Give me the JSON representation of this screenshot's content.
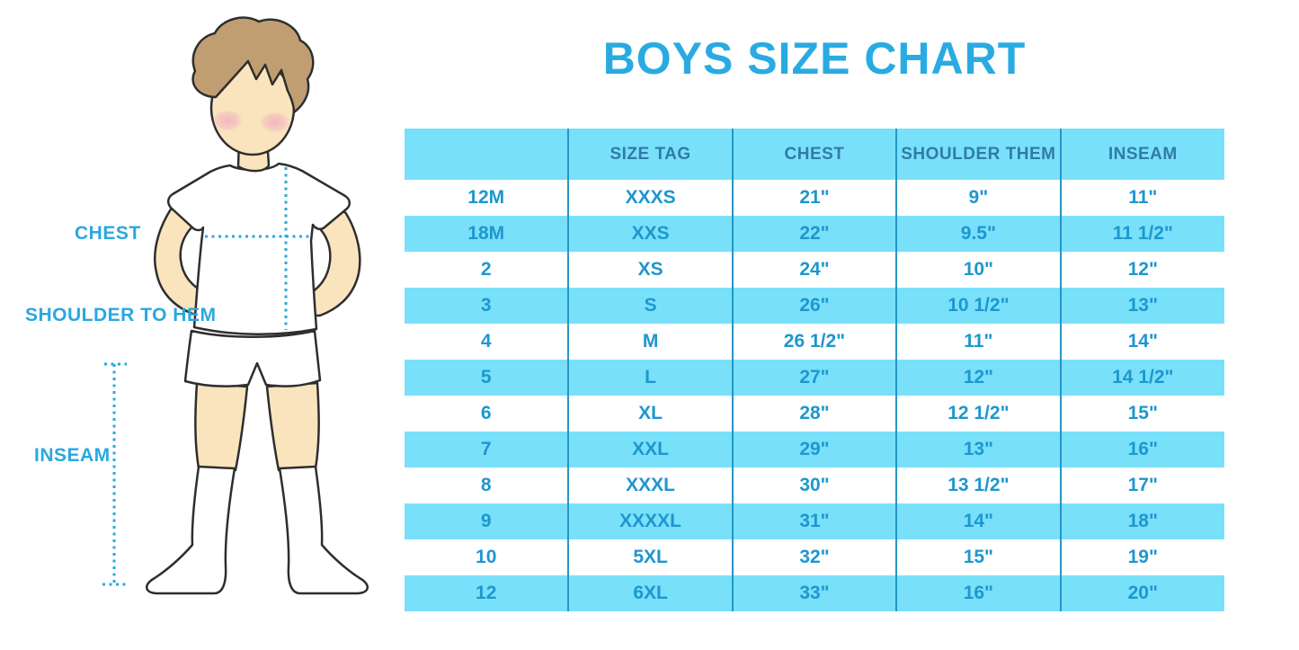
{
  "title": {
    "text": "BOYS SIZE CHART",
    "color": "#29ABE2"
  },
  "figure": {
    "labels": {
      "chest": "CHEST",
      "shoulder_to_hem": "SHOULDER TO HEM",
      "inseam": "INSEAM"
    },
    "colors": {
      "guide": "#29A8E0",
      "skin": "#FAE4BE",
      "hair": "#C19E72",
      "blush": "#F2AFBE",
      "outline": "#2E2E2E",
      "clothing": "#FFFFFF"
    }
  },
  "chart_data": {
    "type": "table",
    "title": "BOYS SIZE CHART",
    "columns": [
      "",
      "SIZE TAG",
      "CHEST",
      "SHOULDER THEM",
      "INSEAM"
    ],
    "rows": [
      [
        "12M",
        "XXXS",
        "21\"",
        "9\"",
        "11\""
      ],
      [
        "18M",
        "XXS",
        "22\"",
        "9.5\"",
        "11 1/2\""
      ],
      [
        "2",
        "XS",
        "24\"",
        "10\"",
        "12\""
      ],
      [
        "3",
        "S",
        "26\"",
        "10 1/2\"",
        "13\""
      ],
      [
        "4",
        "M",
        "26 1/2\"",
        "11\"",
        "14\""
      ],
      [
        "5",
        "L",
        "27\"",
        "12\"",
        "14 1/2\""
      ],
      [
        "6",
        "XL",
        "28\"",
        "12 1/2\"",
        "15\""
      ],
      [
        "7",
        "XXL",
        "29\"",
        "13\"",
        "16\""
      ],
      [
        "8",
        "XXXL",
        "30\"",
        "13 1/2\"",
        "17\""
      ],
      [
        "9",
        "XXXXL",
        "31\"",
        "14\"",
        "18\""
      ],
      [
        "10",
        "5XL",
        "32\"",
        "15\"",
        "19\""
      ],
      [
        "12",
        "6XL",
        "33\"",
        "16\"",
        "20\""
      ]
    ],
    "style": {
      "header_bg": "#79E0FA",
      "stripe_bg": "#79E0FA",
      "divider": "#2496C8",
      "header_text": "#2F7CA6",
      "cell_text": "#1D97CE",
      "row_alt_bg": "#FFFFFF"
    }
  }
}
